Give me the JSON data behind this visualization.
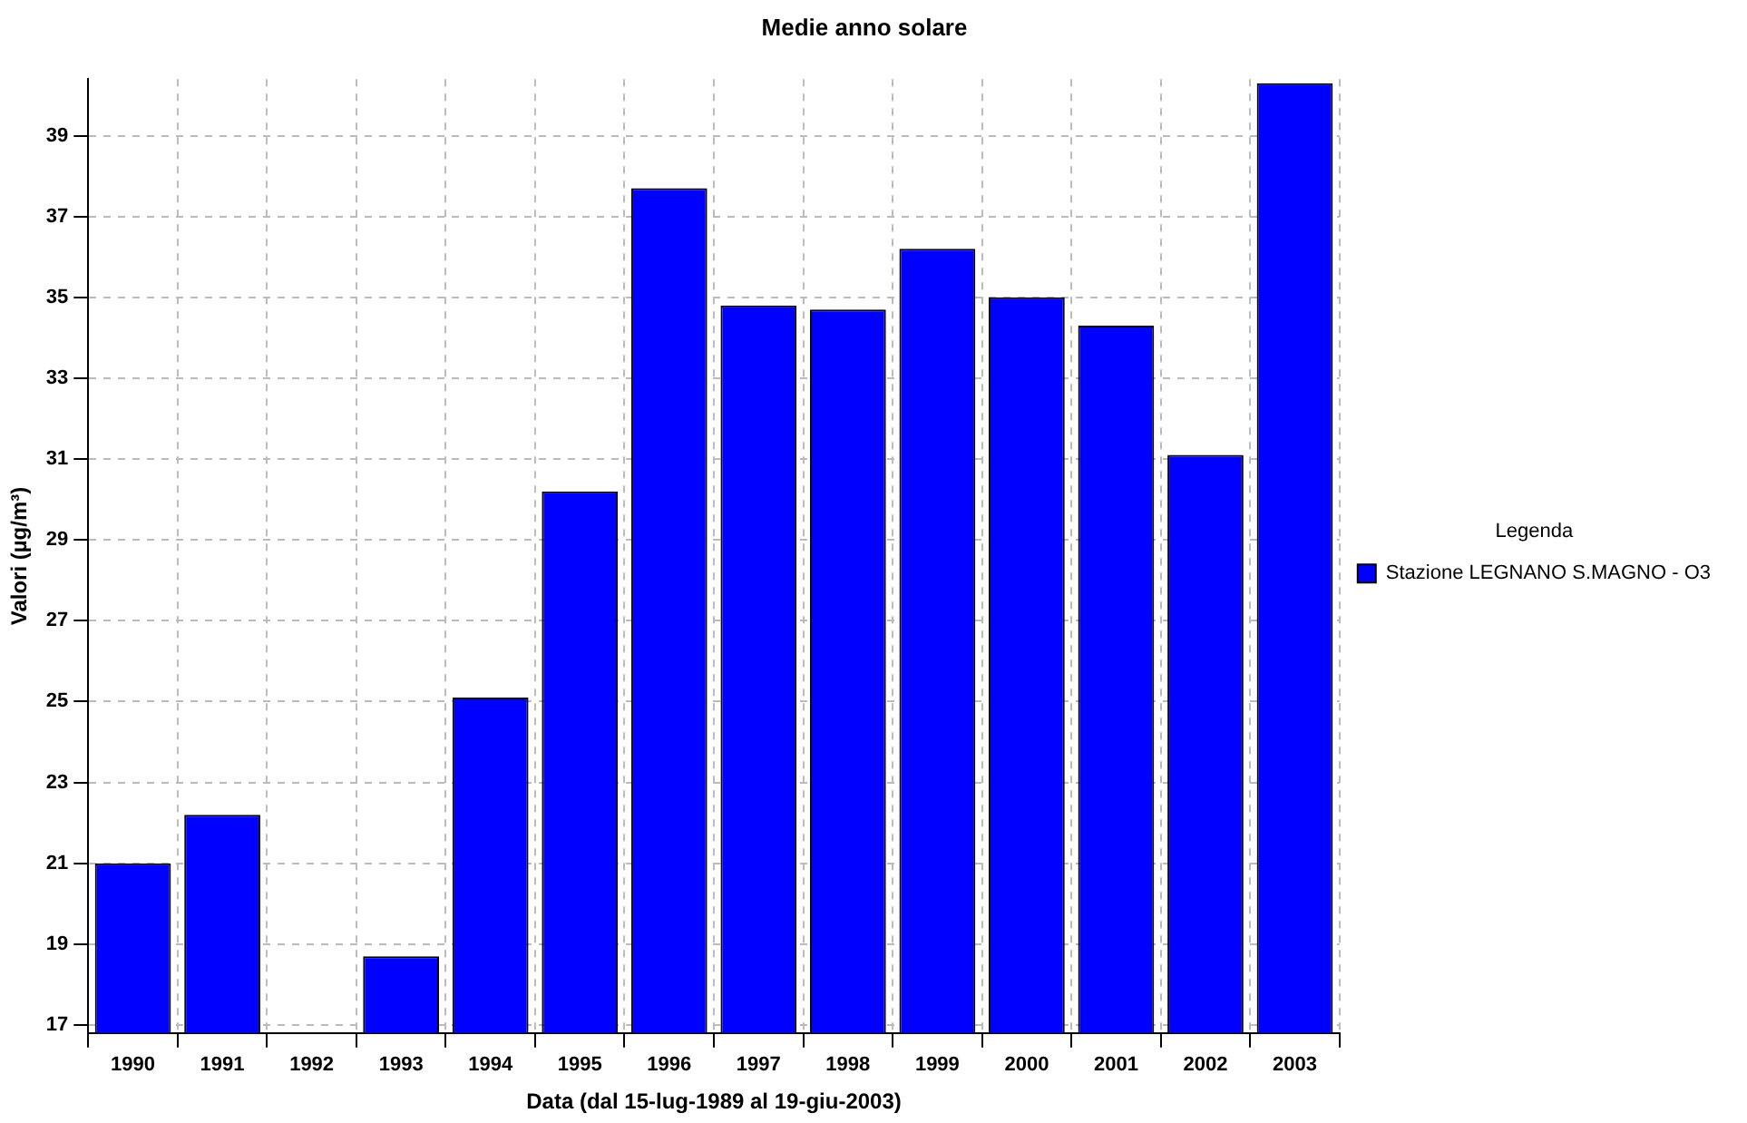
{
  "chart_data": {
    "type": "bar",
    "title": "Medie anno solare",
    "xlabel": "Data (dal 15-lug-1989 al 19-giu-2003)",
    "ylabel": "Valori (µg/m³)",
    "legend_title": "Legenda",
    "categories": [
      "1990",
      "1991",
      "1992",
      "1993",
      "1994",
      "1995",
      "1996",
      "1997",
      "1998",
      "1999",
      "2000",
      "2001",
      "2002",
      "2003"
    ],
    "series": [
      {
        "name": "Stazione LEGNANO S.MAGNO - O3",
        "color": "#0000ff",
        "values": [
          21.0,
          22.2,
          null,
          18.7,
          25.1,
          30.2,
          37.7,
          34.8,
          34.7,
          36.2,
          35.0,
          34.3,
          31.1,
          40.3
        ]
      }
    ],
    "ylim": [
      16.8,
      40.4
    ],
    "yticks": [
      17,
      19,
      21,
      23,
      25,
      27,
      29,
      31,
      33,
      35,
      37,
      39
    ],
    "grid": true,
    "legend": "right"
  }
}
